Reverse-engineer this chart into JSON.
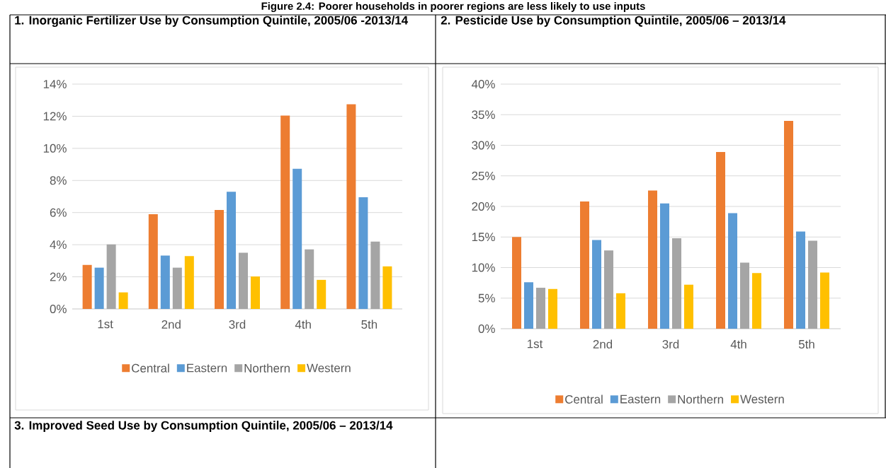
{
  "chart_data": [
    {
      "type": "bar",
      "title": "1. Inorganic Fertilizer Use by Consumption Quintile, 2005/06 -2013/14",
      "categories": [
        "1st",
        "2nd",
        "3rd",
        "4th",
        "5th"
      ],
      "series": [
        {
          "name": "Central",
          "color": "#ed7d31",
          "values": [
            2.74,
            5.9,
            6.16,
            12.04,
            12.74
          ]
        },
        {
          "name": "Eastern",
          "color": "#5b9bd5",
          "values": [
            2.57,
            3.32,
            7.3,
            8.73,
            6.95
          ]
        },
        {
          "name": "Northern",
          "color": "#a5a5a5",
          "values": [
            4.02,
            2.57,
            3.5,
            3.71,
            4.19
          ]
        },
        {
          "name": "Western",
          "color": "#ffc000",
          "values": [
            1.03,
            3.29,
            2.02,
            1.81,
            2.65
          ]
        }
      ],
      "ylim": [
        0,
        14
      ],
      "yticks": [
        {
          "value": 0,
          "label": "0%"
        },
        {
          "value": 2,
          "label": "2%"
        },
        {
          "value": 4,
          "label": "4%"
        },
        {
          "value": 6,
          "label": "6%"
        },
        {
          "value": 8,
          "label": "8%"
        },
        {
          "value": 10,
          "label": "10%"
        },
        {
          "value": 12,
          "label": "12%"
        },
        {
          "value": 14,
          "label": "14%"
        }
      ],
      "grid": "y",
      "legend": "bottom"
    },
    {
      "type": "bar",
      "title": "2. Pesticide Use by Consumption Quintile, 2005/06 – 2013/14",
      "categories": [
        "1st",
        "2nd",
        "3rd",
        "4th",
        "5th"
      ],
      "series": [
        {
          "name": "Central",
          "color": "#ed7d31",
          "values": [
            15.0,
            20.8,
            22.6,
            28.9,
            34.0
          ]
        },
        {
          "name": "Eastern",
          "color": "#5b9bd5",
          "values": [
            7.6,
            14.5,
            20.5,
            18.9,
            15.9
          ]
        },
        {
          "name": "Northern",
          "color": "#a5a5a5",
          "values": [
            6.7,
            12.8,
            14.8,
            10.8,
            14.4
          ]
        },
        {
          "name": "Western",
          "color": "#ffc000",
          "values": [
            6.5,
            5.8,
            7.2,
            9.1,
            9.2
          ]
        }
      ],
      "ylim": [
        0,
        40
      ],
      "yticks": [
        {
          "value": 0,
          "label": "0%"
        },
        {
          "value": 5,
          "label": "5%"
        },
        {
          "value": 10,
          "label": "10%"
        },
        {
          "value": 15,
          "label": "15%"
        },
        {
          "value": 20,
          "label": "20%"
        },
        {
          "value": 25,
          "label": "25%"
        },
        {
          "value": 30,
          "label": "30%"
        },
        {
          "value": 35,
          "label": "35%"
        },
        {
          "value": 40,
          "label": "40%"
        }
      ],
      "grid": "y",
      "legend": "bottom"
    },
    {
      "type": "other",
      "title": "3. Improved Seed Use by Consumption Quintile, 2005/06 – 2013/14",
      "annotations": [
        "Figure 2.4: Poorer households in poorer regions are less likely to use inputs"
      ]
    }
  ]
}
